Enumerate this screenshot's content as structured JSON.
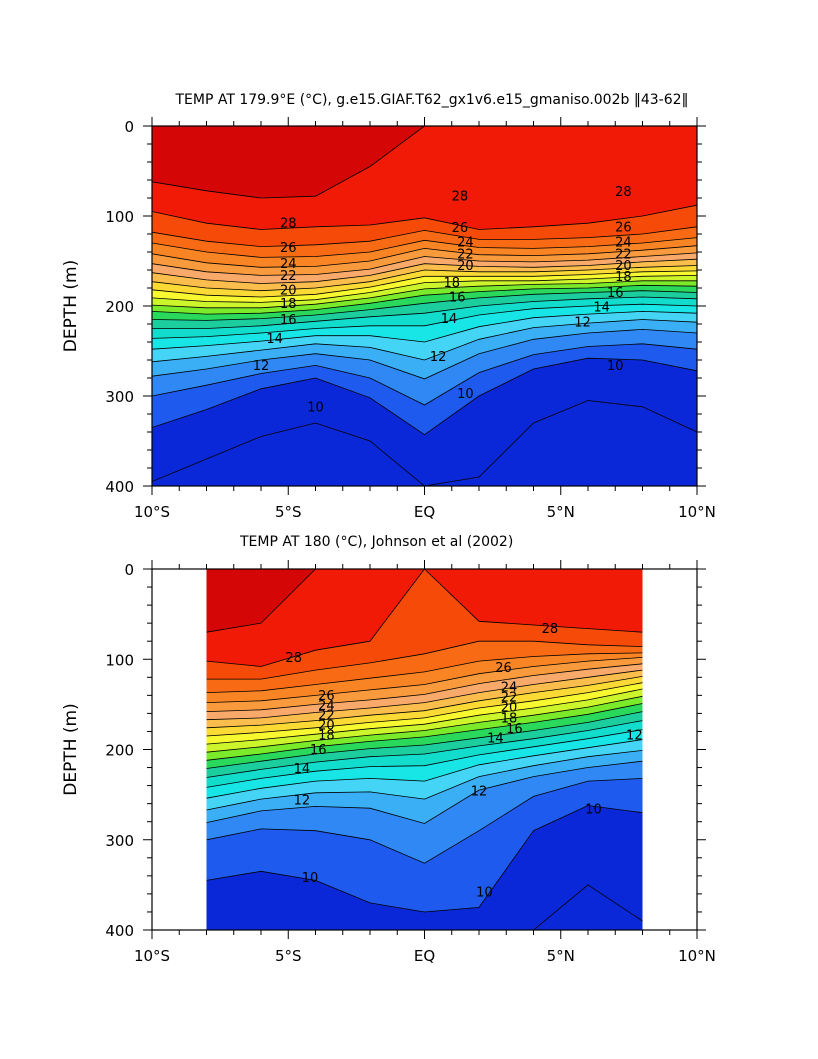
{
  "chart_data": [
    {
      "type": "heatmap",
      "title": "TEMP AT 179.9°E (°C), g.e15.GIAF.T62_gx1v6.e15_gmaniso.002b ‖43-62‖",
      "xlabel": "",
      "ylabel": "DEPTH (m)",
      "xlim": [
        -10,
        10
      ],
      "ylim": [
        400,
        0
      ],
      "x_ticks": [
        -10,
        -5,
        0,
        5,
        10
      ],
      "x_tick_labels": [
        "10°S",
        "5°S",
        "EQ",
        "5°N",
        "10°N"
      ],
      "y_ticks": [
        0,
        100,
        200,
        300,
        400
      ],
      "y_tick_labels": [
        "0",
        "100",
        "200",
        "300",
        "400"
      ],
      "data_extent": [
        -10,
        10
      ],
      "levels": [
        9,
        10,
        11,
        12,
        13,
        14,
        15,
        16,
        17,
        18,
        19,
        20,
        21,
        22,
        23,
        24,
        25,
        26,
        27,
        28,
        29
      ],
      "isotherm_depths": {
        "x": [
          -10,
          -8,
          -6,
          -4,
          -2,
          0,
          2,
          4,
          6,
          8,
          10
        ],
        "series": [
          {
            "t": 29,
            "depth": [
              62,
              72,
              80,
              78,
              45,
              0,
              0,
              0,
              0,
              0,
              0
            ]
          },
          {
            "t": 28,
            "depth": [
              95,
              108,
              115,
              112,
              110,
              102,
              115,
              112,
              108,
              100,
              88
            ]
          },
          {
            "t": 27,
            "depth": [
              118,
              128,
              134,
              132,
              128,
              116,
              126,
              126,
              124,
              120,
              112
            ]
          },
          {
            "t": 26,
            "depth": [
              130,
              140,
              146,
              145,
              140,
              127,
              135,
              136,
              134,
              130,
              124
            ]
          },
          {
            "t": 25,
            "depth": [
              142,
              152,
              157,
              156,
              150,
              136,
              143,
              144,
              142,
              138,
              133
            ]
          },
          {
            "t": 24,
            "depth": [
              153,
              162,
              166,
              165,
              159,
              145,
              150,
              151,
              149,
              145,
              141
            ]
          },
          {
            "t": 23,
            "depth": [
              163,
              171,
              175,
              173,
              166,
              153,
              156,
              157,
              155,
              151,
              148
            ]
          },
          {
            "t": 22,
            "depth": [
              173,
              180,
              183,
              180,
              173,
              160,
              162,
              162,
              160,
              157,
              155
            ]
          },
          {
            "t": 21,
            "depth": [
              182,
              188,
              190,
              187,
              179,
              167,
              167,
              167,
              165,
              162,
              161
            ]
          },
          {
            "t": 20,
            "depth": [
              191,
              195,
              196,
              193,
              185,
              174,
              172,
              172,
              170,
              167,
              166
            ]
          },
          {
            "t": 19,
            "depth": [
              199,
              202,
              202,
              198,
              191,
              181,
              178,
              176,
              175,
              172,
              172
            ]
          },
          {
            "t": 18,
            "depth": [
              206,
              209,
              208,
              204,
              197,
              188,
              184,
              181,
              180,
              177,
              178
            ]
          },
          {
            "t": 17,
            "depth": [
              215,
              216,
              214,
              210,
              204,
              197,
              191,
              187,
              185,
              183,
              185
            ]
          },
          {
            "t": 16,
            "depth": [
              225,
              225,
              222,
              217,
              212,
              208,
              200,
              195,
              192,
              190,
              192
            ]
          },
          {
            "t": 15,
            "depth": [
              236,
              234,
              230,
              225,
              222,
              222,
              210,
              203,
              200,
              198,
              200
            ]
          },
          {
            "t": 14,
            "depth": [
              248,
              244,
              239,
              233,
              233,
              240,
              223,
              213,
              209,
              206,
              208
            ]
          },
          {
            "t": 13,
            "depth": [
              262,
              256,
              249,
              242,
              246,
              260,
              237,
              224,
              219,
              215,
              218
            ]
          },
          {
            "t": 12,
            "depth": [
              278,
              270,
              260,
              253,
              260,
              281,
              253,
              237,
              230,
              226,
              230
            ]
          },
          {
            "t": 11,
            "depth": [
              300,
              288,
              275,
              266,
              280,
              310,
              274,
              254,
              245,
              242,
              248
            ]
          },
          {
            "t": 10,
            "depth": [
              335,
              315,
              292,
              280,
              302,
              343,
              300,
              270,
              258,
              260,
              272
            ]
          },
          {
            "t": 9,
            "depth": [
              395,
              370,
              345,
              330,
              350,
              400,
              390,
              330,
              305,
              312,
              340
            ]
          }
        ]
      },
      "contour_labels": [
        {
          "text": "28",
          "x": -5.0,
          "depth": 108
        },
        {
          "text": "26",
          "x": -5.0,
          "depth": 135
        },
        {
          "text": "24",
          "x": -5.0,
          "depth": 153
        },
        {
          "text": "22",
          "x": -5.0,
          "depth": 166
        },
        {
          "text": "20",
          "x": -5.0,
          "depth": 182
        },
        {
          "text": "18",
          "x": -5.0,
          "depth": 197
        },
        {
          "text": "16",
          "x": -5.0,
          "depth": 215
        },
        {
          "text": "14",
          "x": -5.5,
          "depth": 236
        },
        {
          "text": "12",
          "x": -6.0,
          "depth": 266
        },
        {
          "text": "10",
          "x": -4.0,
          "depth": 312
        },
        {
          "text": "28",
          "x": 1.3,
          "depth": 78
        },
        {
          "text": "26",
          "x": 1.3,
          "depth": 113
        },
        {
          "text": "24",
          "x": 1.5,
          "depth": 129
        },
        {
          "text": "22",
          "x": 1.5,
          "depth": 142
        },
        {
          "text": "20",
          "x": 1.5,
          "depth": 155
        },
        {
          "text": "18",
          "x": 1.0,
          "depth": 174
        },
        {
          "text": "16",
          "x": 1.2,
          "depth": 190
        },
        {
          "text": "14",
          "x": 0.9,
          "depth": 214
        },
        {
          "text": "12",
          "x": 0.5,
          "depth": 256
        },
        {
          "text": "10",
          "x": 1.5,
          "depth": 297
        },
        {
          "text": "28",
          "x": 7.3,
          "depth": 73
        },
        {
          "text": "26",
          "x": 7.3,
          "depth": 112
        },
        {
          "text": "24",
          "x": 7.3,
          "depth": 129
        },
        {
          "text": "22",
          "x": 7.3,
          "depth": 142
        },
        {
          "text": "20",
          "x": 7.3,
          "depth": 155
        },
        {
          "text": "18",
          "x": 7.3,
          "depth": 167
        },
        {
          "text": "16",
          "x": 7.0,
          "depth": 185
        },
        {
          "text": "14",
          "x": 6.5,
          "depth": 201
        },
        {
          "text": "12",
          "x": 5.8,
          "depth": 218
        },
        {
          "text": "10",
          "x": 7.0,
          "depth": 266
        }
      ]
    },
    {
      "type": "heatmap",
      "title": "TEMP AT 180 (°C), Johnson et al (2002)",
      "xlabel": "",
      "ylabel": "DEPTH (m)",
      "xlim": [
        -10,
        10
      ],
      "ylim": [
        400,
        0
      ],
      "x_ticks": [
        -10,
        -5,
        0,
        5,
        10
      ],
      "x_tick_labels": [
        "10°S",
        "5°S",
        "EQ",
        "5°N",
        "10°N"
      ],
      "y_ticks": [
        0,
        100,
        200,
        300,
        400
      ],
      "y_tick_labels": [
        "0",
        "100",
        "200",
        "300",
        "400"
      ],
      "data_extent": [
        -8,
        8
      ],
      "levels": [
        9,
        10,
        11,
        12,
        13,
        14,
        15,
        16,
        17,
        18,
        19,
        20,
        21,
        22,
        23,
        24,
        25,
        26,
        27,
        28,
        29
      ],
      "isotherm_depths": {
        "x": [
          -8,
          -6,
          -4,
          -2,
          0,
          2,
          4,
          6,
          8
        ],
        "series": [
          {
            "t": 29,
            "depth": [
              70,
              60,
              0,
              0,
              0,
              0,
              0,
              0,
              0
            ]
          },
          {
            "t": 28,
            "depth": [
              102,
              108,
              90,
              80,
              0,
              58,
              62,
              66,
              70
            ]
          },
          {
            "t": 27,
            "depth": [
              122,
              122,
              112,
              104,
              94,
              80,
              80,
              84,
              86
            ]
          },
          {
            "t": 26,
            "depth": [
              137,
              135,
              128,
              121,
              114,
              102,
              97,
              94,
              93
            ]
          },
          {
            "t": 25,
            "depth": [
              148,
              146,
              140,
              134,
              128,
              116,
              108,
              102,
              98
            ]
          },
          {
            "t": 24,
            "depth": [
              158,
              156,
              150,
              145,
              139,
              127,
              118,
              111,
              105
            ]
          },
          {
            "t": 23,
            "depth": [
              167,
              165,
              159,
              154,
              148,
              137,
              128,
              120,
              112
            ]
          },
          {
            "t": 22,
            "depth": [
              176,
              173,
              168,
              162,
              157,
              146,
              137,
              129,
              119
            ]
          },
          {
            "t": 21,
            "depth": [
              185,
              181,
              176,
              170,
              165,
              154,
              146,
              137,
              126
            ]
          },
          {
            "t": 20,
            "depth": [
              194,
              189,
              183,
              177,
              172,
              162,
              154,
              145,
              133
            ]
          },
          {
            "t": 19,
            "depth": [
              203,
              197,
              190,
              184,
              179,
              170,
              162,
              153,
              141
            ]
          },
          {
            "t": 18,
            "depth": [
              212,
              205,
              197,
              191,
              186,
              178,
              170,
              161,
              149
            ]
          },
          {
            "t": 17,
            "depth": [
              221,
              213,
              205,
              199,
              195,
              187,
              179,
              170,
              158
            ]
          },
          {
            "t": 16,
            "depth": [
              231,
              222,
              214,
              208,
              205,
              196,
              188,
              179,
              168
            ]
          },
          {
            "t": 15,
            "depth": [
              242,
              232,
              224,
              219,
              218,
              206,
              197,
              188,
              178
            ]
          },
          {
            "t": 14,
            "depth": [
              254,
              243,
              235,
              232,
              235,
              217,
              207,
              198,
              189
            ]
          },
          {
            "t": 13,
            "depth": [
              267,
              255,
              248,
              247,
              255,
              230,
              218,
              208,
              201
            ]
          },
          {
            "t": 12,
            "depth": [
              281,
              268,
              263,
              265,
              282,
              245,
              230,
              220,
              213
            ]
          },
          {
            "t": 11,
            "depth": [
              300,
              288,
              290,
              300,
              326,
              290,
              252,
              235,
              232
            ]
          },
          {
            "t": 10,
            "depth": [
              345,
              335,
              345,
              370,
              380,
              375,
              290,
              262,
              270
            ]
          },
          {
            "t": 9,
            "depth": [
              400,
              400,
              400,
              400,
              400,
              400,
              400,
              350,
              390
            ]
          }
        ]
      },
      "contour_labels": [
        {
          "text": "28",
          "x": -4.8,
          "depth": 98
        },
        {
          "text": "26",
          "x": -3.6,
          "depth": 140
        },
        {
          "text": "24",
          "x": -3.6,
          "depth": 151
        },
        {
          "text": "22",
          "x": -3.6,
          "depth": 162
        },
        {
          "text": "20",
          "x": -3.6,
          "depth": 173
        },
        {
          "text": "18",
          "x": -3.6,
          "depth": 184
        },
        {
          "text": "16",
          "x": -3.9,
          "depth": 200
        },
        {
          "text": "14",
          "x": -4.5,
          "depth": 221
        },
        {
          "text": "12",
          "x": -4.5,
          "depth": 256
        },
        {
          "text": "10",
          "x": -4.2,
          "depth": 342
        },
        {
          "text": "28",
          "x": 4.6,
          "depth": 66
        },
        {
          "text": "26",
          "x": 2.9,
          "depth": 109
        },
        {
          "text": "24",
          "x": 3.1,
          "depth": 131
        },
        {
          "text": "22",
          "x": 3.1,
          "depth": 142
        },
        {
          "text": "20",
          "x": 3.1,
          "depth": 153
        },
        {
          "text": "18",
          "x": 3.1,
          "depth": 165
        },
        {
          "text": "16",
          "x": 3.3,
          "depth": 177
        },
        {
          "text": "14",
          "x": 2.6,
          "depth": 187
        },
        {
          "text": "12",
          "x": 2.0,
          "depth": 246
        },
        {
          "text": "10",
          "x": 2.2,
          "depth": 358
        },
        {
          "text": "10",
          "x": 6.2,
          "depth": 266
        },
        {
          "text": "12",
          "x": 7.7,
          "depth": 184
        }
      ]
    }
  ],
  "palette": [
    "#0a28d8",
    "#1e5aee",
    "#2f88f3",
    "#3aaff6",
    "#44d4f5",
    "#18e6e6",
    "#12dccc",
    "#1ccd9e",
    "#2ad95c",
    "#7bea2a",
    "#cdf52c",
    "#f8f830",
    "#fbda35",
    "#fbbd4c",
    "#f9a96a",
    "#f99a3c",
    "#f98424",
    "#f86b14",
    "#f54a08",
    "#f01a06",
    "#d40606"
  ]
}
